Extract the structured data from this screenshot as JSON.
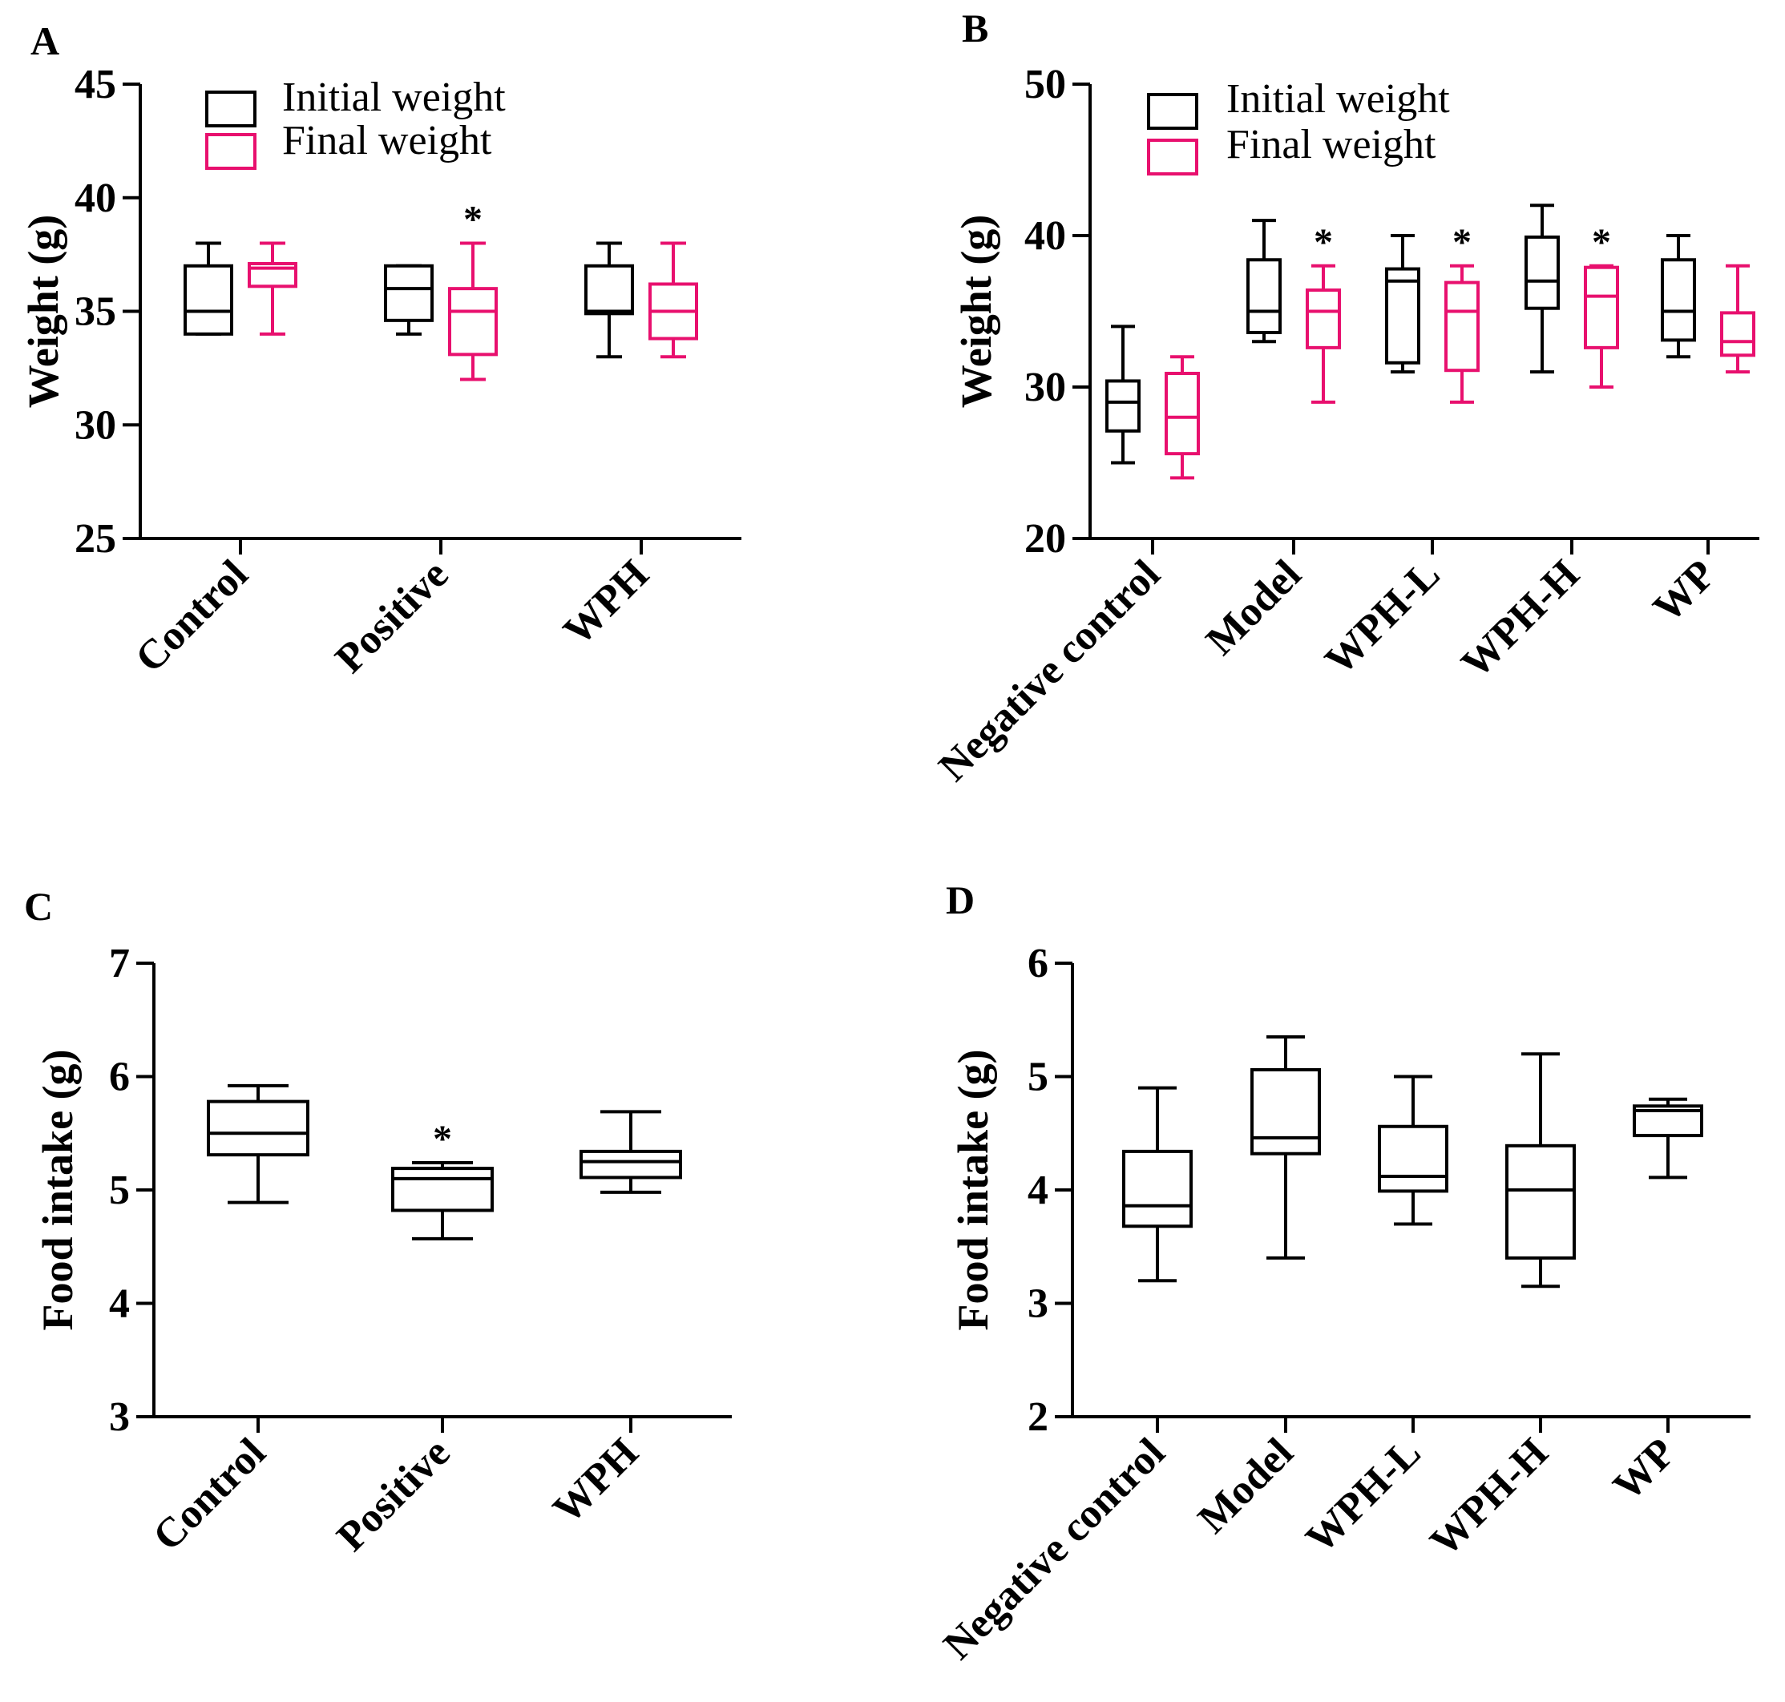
{
  "colors": {
    "initial": "#000000",
    "final": "#e8106e"
  },
  "chart_data": [
    {
      "id": "A",
      "type": "box",
      "panel_label": "A",
      "ylabel": "Weight (g)",
      "xlabel": "",
      "ylim": [
        25,
        45
      ],
      "yticks": [
        "25",
        "30",
        "35",
        "40",
        "45"
      ],
      "categories": [
        "Control",
        "Positive",
        "WPH"
      ],
      "legend": {
        "position": "top-left",
        "entries": [
          "Initial weight",
          "Final weight"
        ]
      },
      "significance_marker": "*",
      "series": [
        {
          "name": "Initial weight",
          "boxes": [
            {
              "min": 34,
              "q1": 34,
              "median": 35,
              "q3": 37,
              "max": 38
            },
            {
              "min": 34,
              "q1": 34.6,
              "median": 36,
              "q3": 37,
              "max": 37
            },
            {
              "min": 33,
              "q1": 34.9,
              "median": 35,
              "q3": 37,
              "max": 38
            }
          ]
        },
        {
          "name": "Final weight",
          "boxes": [
            {
              "min": 34,
              "q1": 36.1,
              "median": 36.9,
              "q3": 37.1,
              "max": 38
            },
            {
              "min": 32,
              "q1": 33.1,
              "median": 35,
              "q3": 36,
              "max": 38,
              "sig": true
            },
            {
              "min": 33,
              "q1": 33.8,
              "median": 35,
              "q3": 36.2,
              "max": 38
            }
          ]
        }
      ]
    },
    {
      "id": "B",
      "type": "box",
      "panel_label": "B",
      "ylabel": "Weight (g)",
      "xlabel": "",
      "ylim": [
        20,
        50
      ],
      "yticks": [
        "20",
        "30",
        "40",
        "50"
      ],
      "categories": [
        "Negative control",
        "Model",
        "WPH-L",
        "WPH-H",
        "WP"
      ],
      "legend": {
        "position": "top-left",
        "entries": [
          "Initial weight",
          "Final weight"
        ]
      },
      "significance_marker": "*",
      "series": [
        {
          "name": "Initial weight",
          "boxes": [
            {
              "min": 25,
              "q1": 27.1,
              "median": 29,
              "q3": 30.4,
              "max": 34
            },
            {
              "min": 33,
              "q1": 33.6,
              "median": 35,
              "q3": 38.4,
              "max": 41
            },
            {
              "min": 31,
              "q1": 31.6,
              "median": 37,
              "q3": 37.8,
              "max": 40
            },
            {
              "min": 31,
              "q1": 35.2,
              "median": 37,
              "q3": 39.9,
              "max": 42
            },
            {
              "min": 32,
              "q1": 33.1,
              "median": 35,
              "q3": 38.4,
              "max": 40
            }
          ]
        },
        {
          "name": "Final weight",
          "boxes": [
            {
              "min": 24,
              "q1": 25.6,
              "median": 28,
              "q3": 30.9,
              "max": 32
            },
            {
              "min": 29,
              "q1": 32.6,
              "median": 35,
              "q3": 36.4,
              "max": 38,
              "sig": true
            },
            {
              "min": 29,
              "q1": 31.1,
              "median": 35,
              "q3": 36.9,
              "max": 38,
              "sig": true
            },
            {
              "min": 30,
              "q1": 32.6,
              "median": 36,
              "q3": 37.9,
              "max": 38,
              "sig": true
            },
            {
              "min": 31,
              "q1": 32.1,
              "median": 33,
              "q3": 34.9,
              "max": 38
            }
          ]
        }
      ]
    },
    {
      "id": "C",
      "type": "box",
      "panel_label": "C",
      "ylabel": "Food intake (g)",
      "xlabel": "",
      "ylim": [
        3,
        7
      ],
      "yticks": [
        "3",
        "4",
        "5",
        "6",
        "7"
      ],
      "categories": [
        "Control",
        "Positive",
        "WPH"
      ],
      "significance_marker": "*",
      "series": [
        {
          "name": "Food intake",
          "boxes": [
            {
              "min": 4.89,
              "q1": 5.31,
              "median": 5.5,
              "q3": 5.78,
              "max": 5.92
            },
            {
              "min": 4.57,
              "q1": 4.82,
              "median": 5.1,
              "q3": 5.19,
              "max": 5.24,
              "sig": true
            },
            {
              "min": 4.98,
              "q1": 5.11,
              "median": 5.25,
              "q3": 5.34,
              "max": 5.69
            }
          ]
        }
      ]
    },
    {
      "id": "D",
      "type": "box",
      "panel_label": "D",
      "ylabel": "Food intake (g)",
      "xlabel": "",
      "ylim": [
        2,
        6
      ],
      "yticks": [
        "2",
        "3",
        "4",
        "5",
        "6"
      ],
      "categories": [
        "Negative control",
        "Model",
        "WPH-L",
        "WPH-H",
        "WP"
      ],
      "series": [
        {
          "name": "Food intake",
          "boxes": [
            {
              "min": 3.2,
              "q1": 3.68,
              "median": 3.86,
              "q3": 4.34,
              "max": 4.9
            },
            {
              "min": 3.4,
              "q1": 4.32,
              "median": 4.46,
              "q3": 5.06,
              "max": 5.35
            },
            {
              "min": 3.7,
              "q1": 3.99,
              "median": 4.12,
              "q3": 4.56,
              "max": 5.0
            },
            {
              "min": 3.15,
              "q1": 3.4,
              "median": 4.0,
              "q3": 4.39,
              "max": 5.2
            },
            {
              "min": 4.11,
              "q1": 4.48,
              "median": 4.7,
              "q3": 4.74,
              "max": 4.8
            }
          ]
        }
      ]
    }
  ]
}
